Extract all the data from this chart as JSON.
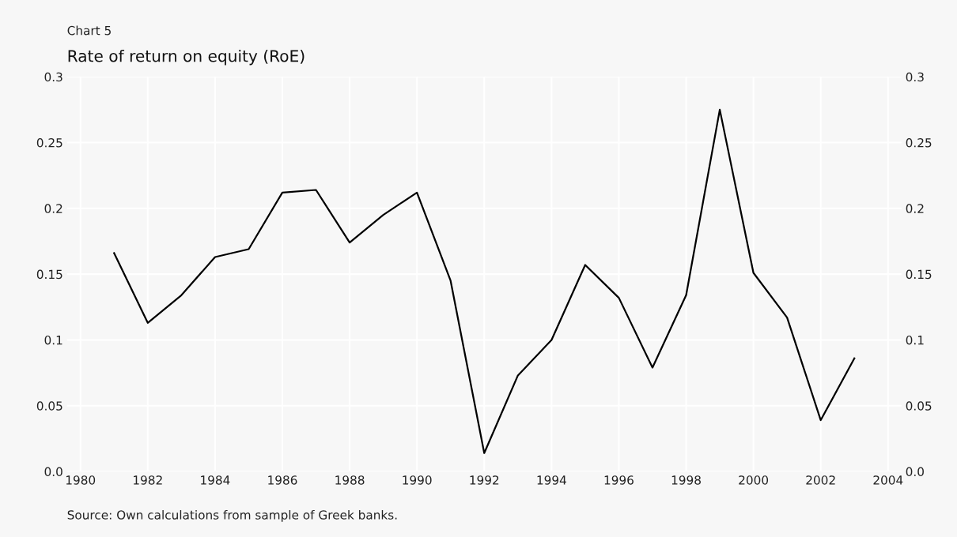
{
  "chart_data": {
    "type": "line",
    "title": "Chart 5",
    "subtitle": "Rate of return on equity (RoE)",
    "x": [
      1981,
      1982,
      1983,
      1984,
      1985,
      1986,
      1987,
      1988,
      1989,
      1990,
      1991,
      1992,
      1993,
      1994,
      1995,
      1996,
      1997,
      1998,
      1999,
      2000,
      2001,
      2002,
      2003
    ],
    "series": [
      {
        "color": "#000000",
        "values": [
          0.166,
          0.113,
          0.134,
          0.163,
          0.169,
          0.212,
          0.214,
          0.174,
          0.195,
          0.212,
          0.145,
          0.014,
          0.073,
          0.1,
          0.157,
          0.132,
          0.079,
          0.134,
          0.275,
          0.151,
          0.117,
          0.039,
          0.086
        ]
      }
    ],
    "xlim": [
      1979.6,
      2004.4
    ],
    "xticks": [
      1980,
      1982,
      1984,
      1986,
      1988,
      1990,
      1992,
      1994,
      1996,
      1998,
      2000,
      2002,
      2004
    ],
    "ylim": [
      0,
      0.3
    ],
    "yticks": [
      {
        "value": 0,
        "label": "0.0"
      },
      0.05,
      0.1,
      0.15,
      0.2,
      0.25,
      0.3
    ],
    "y2lim": [
      0,
      0.3
    ],
    "y2ticks": [
      {
        "value": 0,
        "label": "0.0"
      },
      0.05,
      0.1,
      0.15,
      0.2,
      0.25,
      0.3
    ],
    "grid": true,
    "legend": false,
    "marker": "none",
    "line_style": "solid",
    "annotations": [
      "Source: Own calculations from sample of Greek banks."
    ]
  }
}
